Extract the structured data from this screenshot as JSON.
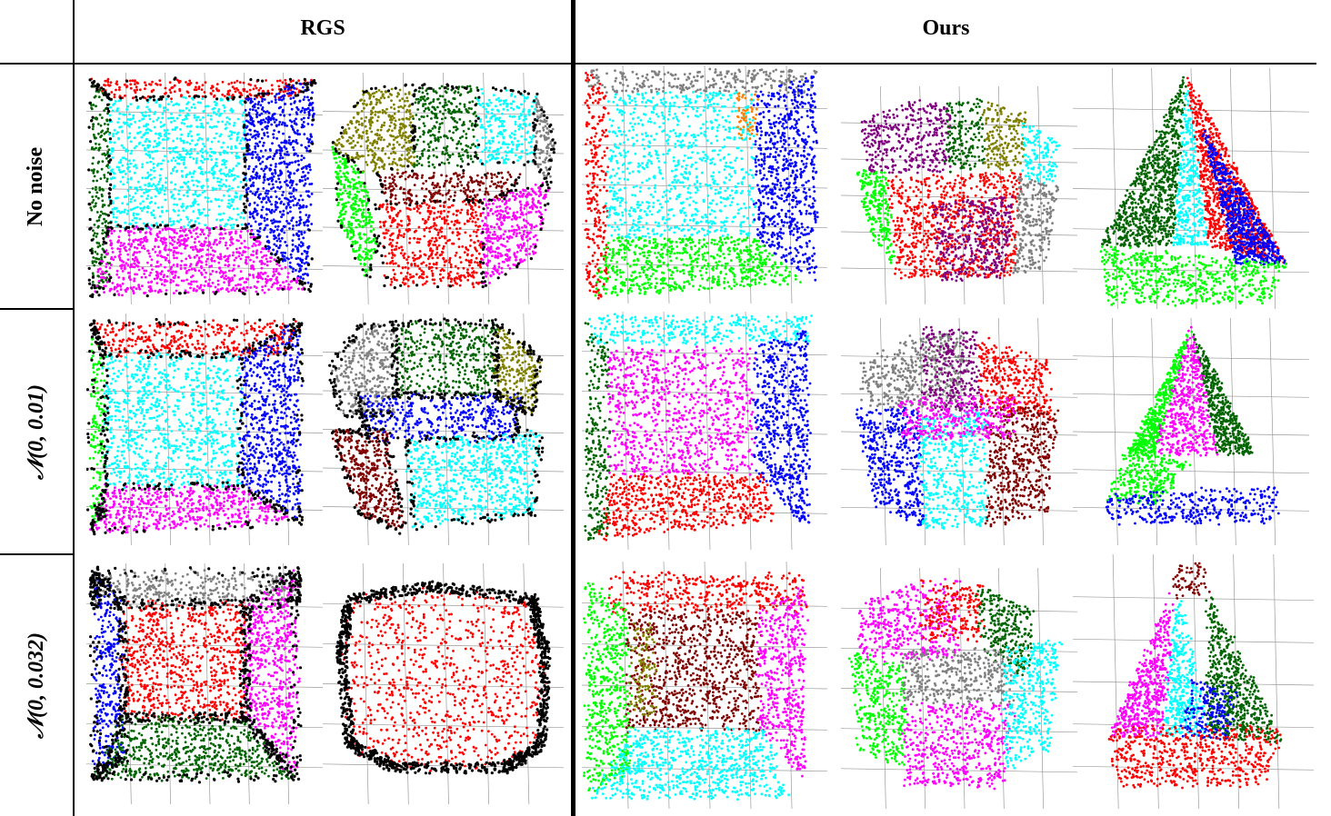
{
  "header": {
    "col_rgs": "RGS",
    "col_ours": "Ours"
  },
  "rows": [
    {
      "label": "No noise"
    },
    {
      "label": "𝒩(0, 0.01)"
    },
    {
      "label": "𝒩(0, 0.032)"
    }
  ],
  "palette": {
    "red": "#ff0000",
    "blue": "#0000ff",
    "cyan": "#00ffff",
    "magenta": "#ff00ff",
    "dark_green": "#006400",
    "green": "#00ff00",
    "gray": "#808080",
    "olive": "#808000",
    "maroon": "#800000",
    "purple": "#800080",
    "teal": "#008080",
    "orange": "#ff8000",
    "black": "#000000",
    "yellow": "#ffff00",
    "lime": "#7fff00"
  }
}
